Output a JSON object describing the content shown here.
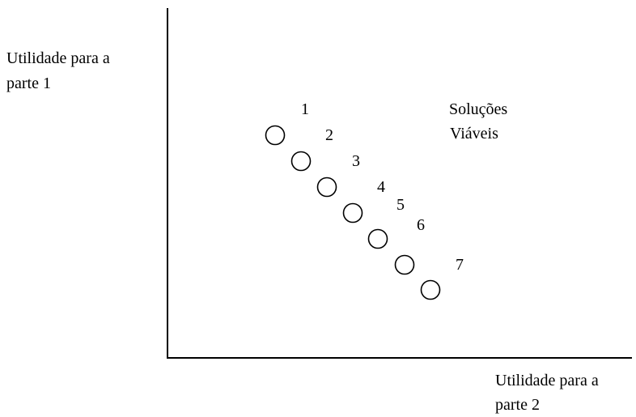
{
  "diagram": {
    "y_axis_label": [
      "Utilidade para a",
      "parte 1"
    ],
    "x_axis_label": [
      "Utilidade para a",
      "parte 2"
    ],
    "region_label": [
      "Soluções",
      "Viáveis"
    ],
    "points": [
      {
        "label": "1"
      },
      {
        "label": "2"
      },
      {
        "label": "3"
      },
      {
        "label": "4"
      },
      {
        "label": "5"
      },
      {
        "label": "6"
      },
      {
        "label": "7"
      }
    ]
  }
}
